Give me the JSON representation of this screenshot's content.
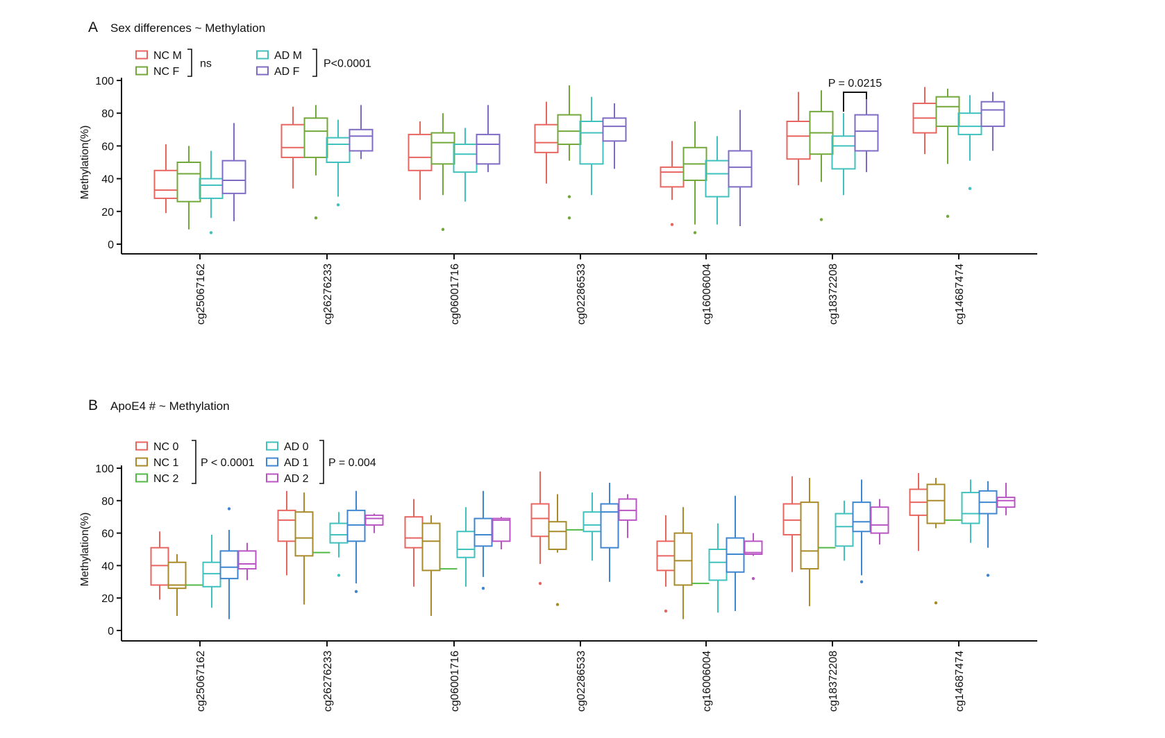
{
  "colors": {
    "NC_M": "#e8655f",
    "NC_F": "#72a83a",
    "AD_M": "#3fc1bd",
    "AD_F": "#7f6bc4",
    "NC_0": "#e8655f",
    "NC_1": "#a88a28",
    "NC_2": "#52b946",
    "AD_0": "#3fc1bd",
    "AD_1": "#3f86d0",
    "AD_2": "#b955c3",
    "axis": "#111111"
  },
  "chart_data": [
    {
      "type": "boxplot",
      "panel_letter": "A",
      "title": "Sex differences ~ Methylation",
      "ylabel": "Methylation(%)",
      "ylim": [
        0,
        100
      ],
      "yticks": [
        "0",
        "20",
        "40",
        "60",
        "80",
        "100"
      ],
      "categories": [
        "cg25067162",
        "cg26276233",
        "cg06001716",
        "cg02286533",
        "cg16006004",
        "cg18372208",
        "cg14687474"
      ],
      "legend": [
        {
          "group": "nc",
          "items": [
            {
              "label": "NC M",
              "color_key": "NC_M"
            },
            {
              "label": "NC F",
              "color_key": "NC_F"
            }
          ],
          "stat": "ns"
        },
        {
          "group": "ad",
          "items": [
            {
              "label": "AD M",
              "color_key": "AD_M"
            },
            {
              "label": "AD F",
              "color_key": "AD_F"
            }
          ],
          "stat": "P<0.0001"
        }
      ],
      "annotation": {
        "text": "P = 0.0215",
        "category_index": 5,
        "from_series": 2,
        "to_series": 3
      },
      "series": [
        {
          "name": "NC M",
          "color_key": "NC_M",
          "boxes": [
            {
              "min": 19,
              "q1": 28,
              "median": 33,
              "q3": 45,
              "max": 61,
              "outliers": []
            },
            {
              "min": 34,
              "q1": 53,
              "median": 59,
              "q3": 73,
              "max": 84,
              "outliers": []
            },
            {
              "min": 27,
              "q1": 45,
              "median": 53,
              "q3": 67,
              "max": 75,
              "outliers": []
            },
            {
              "min": 37,
              "q1": 56,
              "median": 62,
              "q3": 73,
              "max": 87,
              "outliers": []
            },
            {
              "min": 27,
              "q1": 35,
              "median": 44,
              "q3": 47,
              "max": 63,
              "outliers": [
                12
              ]
            },
            {
              "min": 36,
              "q1": 52,
              "median": 66,
              "q3": 75,
              "max": 93,
              "outliers": []
            },
            {
              "min": 55,
              "q1": 68,
              "median": 77,
              "q3": 86,
              "max": 96,
              "outliers": []
            }
          ]
        },
        {
          "name": "NC F",
          "color_key": "NC_F",
          "boxes": [
            {
              "min": 9,
              "q1": 26,
              "median": 43,
              "q3": 50,
              "max": 60,
              "outliers": []
            },
            {
              "min": 42,
              "q1": 53,
              "median": 69,
              "q3": 77,
              "max": 85,
              "outliers": [
                16
              ]
            },
            {
              "min": 30,
              "q1": 49,
              "median": 62,
              "q3": 68,
              "max": 80,
              "outliers": [
                9
              ]
            },
            {
              "min": 51,
              "q1": 61,
              "median": 69,
              "q3": 79,
              "max": 97,
              "outliers": [
                29,
                16
              ]
            },
            {
              "min": 12,
              "q1": 39,
              "median": 49,
              "q3": 59,
              "max": 75,
              "outliers": [
                7
              ]
            },
            {
              "min": 38,
              "q1": 55,
              "median": 68,
              "q3": 81,
              "max": 94,
              "outliers": [
                15
              ]
            },
            {
              "min": 49,
              "q1": 72,
              "median": 84,
              "q3": 90,
              "max": 95,
              "outliers": [
                17
              ]
            }
          ]
        },
        {
          "name": "AD M",
          "color_key": "AD_M",
          "boxes": [
            {
              "min": 16,
              "q1": 28,
              "median": 36,
              "q3": 40,
              "max": 57,
              "outliers": [
                7
              ]
            },
            {
              "min": 29,
              "q1": 50,
              "median": 61,
              "q3": 65,
              "max": 76,
              "outliers": [
                24
              ]
            },
            {
              "min": 26,
              "q1": 44,
              "median": 55,
              "q3": 61,
              "max": 71,
              "outliers": []
            },
            {
              "min": 30,
              "q1": 49,
              "median": 68,
              "q3": 75,
              "max": 90,
              "outliers": []
            },
            {
              "min": 12,
              "q1": 29,
              "median": 43,
              "q3": 51,
              "max": 66,
              "outliers": []
            },
            {
              "min": 30,
              "q1": 46,
              "median": 60,
              "q3": 66,
              "max": 80,
              "outliers": []
            },
            {
              "min": 51,
              "q1": 67,
              "median": 72,
              "q3": 80,
              "max": 91,
              "outliers": [
                34
              ]
            }
          ]
        },
        {
          "name": "AD F",
          "color_key": "AD_F",
          "boxes": [
            {
              "min": 14,
              "q1": 31,
              "median": 39,
              "q3": 51,
              "max": 74,
              "outliers": []
            },
            {
              "min": 52,
              "q1": 57,
              "median": 66,
              "q3": 70,
              "max": 85,
              "outliers": []
            },
            {
              "min": 44,
              "q1": 49,
              "median": 61,
              "q3": 67,
              "max": 85,
              "outliers": []
            },
            {
              "min": 46,
              "q1": 63,
              "median": 72,
              "q3": 77,
              "max": 86,
              "outliers": []
            },
            {
              "min": 11,
              "q1": 35,
              "median": 47,
              "q3": 57,
              "max": 82,
              "outliers": []
            },
            {
              "min": 44,
              "q1": 57,
              "median": 69,
              "q3": 79,
              "max": 92,
              "outliers": []
            },
            {
              "min": 57,
              "q1": 72,
              "median": 82,
              "q3": 87,
              "max": 93,
              "outliers": []
            }
          ]
        }
      ]
    },
    {
      "type": "boxplot",
      "panel_letter": "B",
      "title": "ApoE4 # ~ Methylation",
      "ylabel": "Methylation(%)",
      "ylim": [
        0,
        100
      ],
      "yticks": [
        "0",
        "20",
        "40",
        "60",
        "80",
        "100"
      ],
      "categories": [
        "cg25067162",
        "cg26276233",
        "cg06001716",
        "cg02286533",
        "cg16006004",
        "cg18372208",
        "cg14687474"
      ],
      "legend": [
        {
          "group": "nc",
          "items": [
            {
              "label": "NC 0",
              "color_key": "NC_0"
            },
            {
              "label": "NC 1",
              "color_key": "NC_1"
            },
            {
              "label": "NC 2",
              "color_key": "NC_2"
            }
          ],
          "stat": "P < 0.0001"
        },
        {
          "group": "ad",
          "items": [
            {
              "label": "AD 0",
              "color_key": "AD_0"
            },
            {
              "label": "AD 1",
              "color_key": "AD_1"
            },
            {
              "label": "AD 2",
              "color_key": "AD_2"
            }
          ],
          "stat": "P = 0.004"
        }
      ],
      "series": [
        {
          "name": "NC 0",
          "color_key": "NC_0",
          "boxes": [
            {
              "min": 19,
              "q1": 28,
              "median": 40,
              "q3": 51,
              "max": 61,
              "outliers": []
            },
            {
              "min": 34,
              "q1": 55,
              "median": 68,
              "q3": 74,
              "max": 86,
              "outliers": []
            },
            {
              "min": 27,
              "q1": 51,
              "median": 57,
              "q3": 70,
              "max": 81,
              "outliers": []
            },
            {
              "min": 41,
              "q1": 58,
              "median": 69,
              "q3": 78,
              "max": 98,
              "outliers": [
                29
              ]
            },
            {
              "min": 27,
              "q1": 37,
              "median": 46,
              "q3": 55,
              "max": 71,
              "outliers": [
                12
              ]
            },
            {
              "min": 36,
              "q1": 59,
              "median": 68,
              "q3": 78,
              "max": 95,
              "outliers": []
            },
            {
              "min": 49,
              "q1": 71,
              "median": 79,
              "q3": 87,
              "max": 97,
              "outliers": []
            }
          ]
        },
        {
          "name": "NC 1",
          "color_key": "NC_1",
          "boxes": [
            {
              "min": 9,
              "q1": 26,
              "median": 28,
              "q3": 42,
              "max": 47,
              "outliers": []
            },
            {
              "min": 16,
              "q1": 46,
              "median": 57,
              "q3": 73,
              "max": 85,
              "outliers": []
            },
            {
              "min": 9,
              "q1": 37,
              "median": 55,
              "q3": 66,
              "max": 71,
              "outliers": []
            },
            {
              "min": 48,
              "q1": 50,
              "median": 61,
              "q3": 67,
              "max": 84,
              "outliers": [
                16
              ]
            },
            {
              "min": 7,
              "q1": 28,
              "median": 43,
              "q3": 60,
              "max": 76,
              "outliers": []
            },
            {
              "min": 15,
              "q1": 38,
              "median": 49,
              "q3": 79,
              "max": 94,
              "outliers": []
            },
            {
              "min": 63,
              "q1": 66,
              "median": 80,
              "q3": 90,
              "max": 94,
              "outliers": [
                17
              ]
            }
          ]
        },
        {
          "name": "NC 2",
          "color_key": "NC_2",
          "boxes": [
            {
              "min": 28,
              "q1": 28,
              "median": 28,
              "q3": 28,
              "max": 28,
              "outliers": []
            },
            {
              "min": 48,
              "q1": 48,
              "median": 48,
              "q3": 48,
              "max": 48,
              "outliers": []
            },
            {
              "min": 38,
              "q1": 38,
              "median": 38,
              "q3": 38,
              "max": 38,
              "outliers": []
            },
            {
              "min": 62,
              "q1": 62,
              "median": 62,
              "q3": 62,
              "max": 62,
              "outliers": []
            },
            {
              "min": 29,
              "q1": 29,
              "median": 29,
              "q3": 29,
              "max": 29,
              "outliers": []
            },
            {
              "min": 51,
              "q1": 51,
              "median": 51,
              "q3": 51,
              "max": 51,
              "outliers": []
            },
            {
              "min": 68,
              "q1": 68,
              "median": 68,
              "q3": 68,
              "max": 68,
              "outliers": []
            }
          ]
        },
        {
          "name": "AD 0",
          "color_key": "AD_0",
          "boxes": [
            {
              "min": 14,
              "q1": 27,
              "median": 35,
              "q3": 42,
              "max": 59,
              "outliers": []
            },
            {
              "min": 45,
              "q1": 54,
              "median": 59,
              "q3": 66,
              "max": 73,
              "outliers": [
                34
              ]
            },
            {
              "min": 27,
              "q1": 45,
              "median": 50,
              "q3": 61,
              "max": 76,
              "outliers": []
            },
            {
              "min": 43,
              "q1": 61,
              "median": 65,
              "q3": 73,
              "max": 85,
              "outliers": []
            },
            {
              "min": 11,
              "q1": 31,
              "median": 42,
              "q3": 50,
              "max": 66,
              "outliers": []
            },
            {
              "min": 43,
              "q1": 52,
              "median": 64,
              "q3": 72,
              "max": 80,
              "outliers": []
            },
            {
              "min": 54,
              "q1": 66,
              "median": 72,
              "q3": 85,
              "max": 93,
              "outliers": []
            }
          ]
        },
        {
          "name": "AD 1",
          "color_key": "AD_1",
          "boxes": [
            {
              "min": 7,
              "q1": 32,
              "median": 39,
              "q3": 49,
              "max": 62,
              "outliers": [
                75
              ]
            },
            {
              "min": 29,
              "q1": 55,
              "median": 65,
              "q3": 74,
              "max": 86,
              "outliers": [
                24
              ]
            },
            {
              "min": 33,
              "q1": 52,
              "median": 59,
              "q3": 69,
              "max": 86,
              "outliers": [
                26
              ]
            },
            {
              "min": 30,
              "q1": 51,
              "median": 73,
              "q3": 78,
              "max": 91,
              "outliers": []
            },
            {
              "min": 12,
              "q1": 36,
              "median": 47,
              "q3": 57,
              "max": 83,
              "outliers": []
            },
            {
              "min": 34,
              "q1": 61,
              "median": 67,
              "q3": 79,
              "max": 93,
              "outliers": [
                30
              ]
            },
            {
              "min": 51,
              "q1": 72,
              "median": 79,
              "q3": 86,
              "max": 92,
              "outliers": [
                34
              ]
            }
          ]
        },
        {
          "name": "AD 2",
          "color_key": "AD_2",
          "boxes": [
            {
              "min": 31,
              "q1": 38,
              "median": 41,
              "q3": 49,
              "max": 54,
              "outliers": []
            },
            {
              "min": 60,
              "q1": 65,
              "median": 69,
              "q3": 71,
              "max": 72,
              "outliers": []
            },
            {
              "min": 50,
              "q1": 55,
              "median": 68,
              "q3": 69,
              "max": 70,
              "outliers": []
            },
            {
              "min": 57,
              "q1": 68,
              "median": 74,
              "q3": 81,
              "max": 84,
              "outliers": []
            },
            {
              "min": 46,
              "q1": 47,
              "median": 48,
              "q3": 55,
              "max": 60,
              "outliers": [
                32
              ]
            },
            {
              "min": 53,
              "q1": 60,
              "median": 65,
              "q3": 76,
              "max": 81,
              "outliers": []
            },
            {
              "min": 71,
              "q1": 76,
              "median": 80,
              "q3": 82,
              "max": 91,
              "outliers": []
            }
          ]
        }
      ]
    }
  ]
}
